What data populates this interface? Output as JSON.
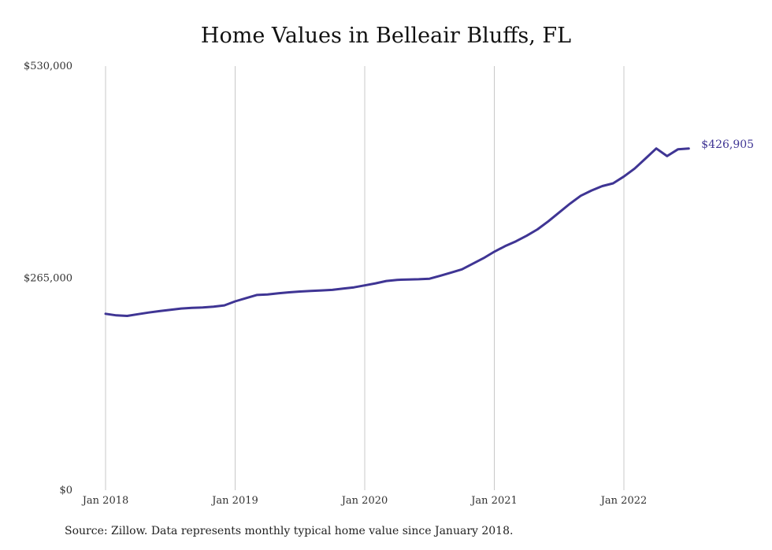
{
  "title": "Home Values in Belleair Bluffs, FL",
  "source": "Source: Zillow. Data represents monthly typical home value since January 2018.",
  "colors": {
    "line": "#3f3594",
    "grid": "#c8c8c8",
    "text": "#333333"
  },
  "chart_data": {
    "type": "line",
    "title": "Home Values in Belleair Bluffs, FL",
    "xlabel": "",
    "ylabel": "",
    "ylim": [
      0,
      530000
    ],
    "yticks": [
      {
        "value": 0,
        "label": "$0"
      },
      {
        "value": 265000,
        "label": "$265,000"
      },
      {
        "value": 530000,
        "label": "$530,000"
      }
    ],
    "xticks": [
      {
        "date": "2018-01",
        "label": "Jan 2018"
      },
      {
        "date": "2019-01",
        "label": "Jan 2019"
      },
      {
        "date": "2020-01",
        "label": "Jan 2020"
      },
      {
        "date": "2021-01",
        "label": "Jan 2021"
      },
      {
        "date": "2022-01",
        "label": "Jan 2022"
      }
    ],
    "grid": "vertical",
    "end_label": "$426,905",
    "series": [
      {
        "x": [
          "2018-01",
          "2018-02",
          "2018-03",
          "2018-04",
          "2018-05",
          "2018-06",
          "2018-07",
          "2018-08",
          "2018-09",
          "2018-10",
          "2018-11",
          "2018-12",
          "2019-01",
          "2019-02",
          "2019-03",
          "2019-04",
          "2019-05",
          "2019-06",
          "2019-07",
          "2019-08",
          "2019-09",
          "2019-10",
          "2019-11",
          "2019-12",
          "2020-01",
          "2020-02",
          "2020-03",
          "2020-04",
          "2020-05",
          "2020-06",
          "2020-07",
          "2020-08",
          "2020-09",
          "2020-10",
          "2020-11",
          "2020-12",
          "2021-01",
          "2021-02",
          "2021-03",
          "2021-04",
          "2021-05",
          "2021-06",
          "2021-07",
          "2021-08",
          "2021-09",
          "2021-10",
          "2021-11",
          "2021-12",
          "2022-01",
          "2022-02",
          "2022-03",
          "2022-04",
          "2022-05",
          "2022-06",
          "2022-07"
        ],
        "values": [
          220500,
          218500,
          217800,
          220000,
          222000,
          223800,
          225500,
          227000,
          227800,
          228300,
          229300,
          231000,
          236000,
          240000,
          244000,
          244500,
          246000,
          247300,
          248300,
          249000,
          249700,
          250300,
          252000,
          253500,
          256000,
          258500,
          261500,
          262800,
          263300,
          263600,
          264300,
          268000,
          272000,
          276000,
          283000,
          290000,
          298000,
          305000,
          311000,
          318000,
          326000,
          336000,
          347000,
          358000,
          368000,
          374500,
          380000,
          383500,
          392000,
          402000,
          414500,
          427000,
          417500,
          426000,
          426905
        ]
      }
    ]
  }
}
